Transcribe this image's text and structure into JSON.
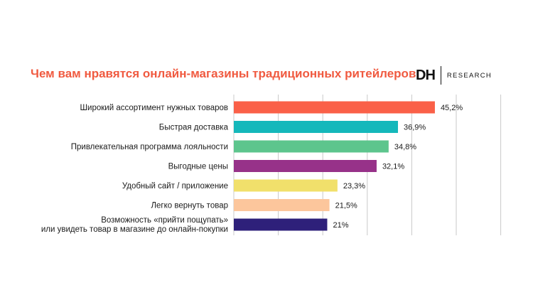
{
  "title": "Чем вам нравятся онлайн-магазины традиционных ритейлеров",
  "logo": {
    "mark": "DH",
    "text": "RESEARCH"
  },
  "chart_data": {
    "type": "bar",
    "orientation": "horizontal",
    "title": "Чем вам нравятся онлайн-магазины традиционных ритейлеров",
    "categories": [
      [
        "Широкий ассортимент нужных товаров"
      ],
      [
        "Быстрая доставка"
      ],
      [
        "Привлекательная программа лояльности"
      ],
      [
        "Выгодные цены"
      ],
      [
        "Удобный сайт / приложение"
      ],
      [
        "Легко вернуть товар"
      ],
      [
        "Возможность «прийти пощупать»",
        "или увидеть товар в магазине до онлайн-покупки"
      ]
    ],
    "values": [
      45.2,
      36.9,
      34.8,
      32.1,
      23.3,
      21.5,
      21
    ],
    "value_labels": [
      "45,2%",
      "36,9%",
      "34,8%",
      "32,1%",
      "23,3%",
      "21,5%",
      "21%"
    ],
    "colors": [
      "#fa6048",
      "#15b8bb",
      "#5dc58d",
      "#973289",
      "#f1e06b",
      "#fcc69c",
      "#2e207a"
    ],
    "xlim": [
      0,
      60
    ],
    "grid": true,
    "legend": "none"
  }
}
